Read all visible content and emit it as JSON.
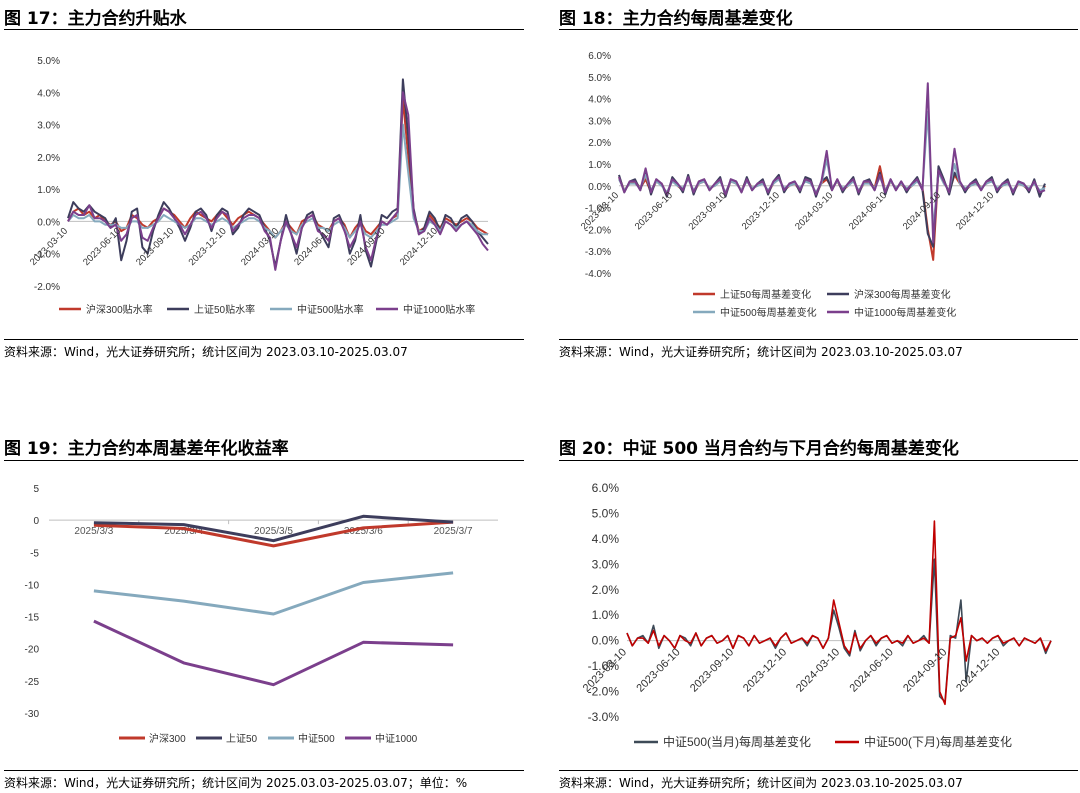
{
  "panels": [
    {
      "title": "图 17：主力合约升贴水",
      "source": "资料来源：Wind，光大证券研究所；统计区间为 2023.03.10-2025.03.07"
    },
    {
      "title": "图 18：主力合约每周基差变化",
      "source": "资料来源：Wind，光大证券研究所；统计区间为 2023.03.10-2025.03.07"
    },
    {
      "title": "图 19：主力合约本周基差年化收益率",
      "source": "资料来源：Wind，光大证券研究所；统计区间为 2025.03.03-2025.03.07；单位：%"
    },
    {
      "title": "图 20：中证 500 当月合约与下月合约每周基差变化",
      "source": "资料来源：Wind，光大证券研究所；统计区间为 2023.03.10-2025.03.07"
    }
  ],
  "chart_data": [
    {
      "type": "line",
      "title": "图 17：主力合约升贴水",
      "x_range": [
        "2023-03-10",
        "2025-03-07"
      ],
      "x_ticks": [
        "2023-03-10",
        "2023-06-10",
        "2023-09-10",
        "2023-12-10",
        "2024-03-10",
        "2024-06-10",
        "2024-09-10",
        "2024-12-10"
      ],
      "y_ticks": [
        "-2.0%",
        "-1.0%",
        "0.0%",
        "1.0%",
        "2.0%",
        "3.0%",
        "4.0%",
        "5.0%"
      ],
      "ylim": [
        -2.0,
        5.0
      ],
      "legend_position": "bottom",
      "series": [
        {
          "name": "沪深300贴水率",
          "color": "#c0392b",
          "values": [
            0.0,
            0.3,
            0.4,
            0.2,
            0.3,
            0.1,
            0.2,
            0.0,
            -0.1,
            0.0,
            -0.3,
            -0.2,
            0.2,
            0.1,
            -0.1,
            -0.2,
            0.0,
            0.1,
            0.4,
            0.3,
            0.2,
            0.0,
            -0.2,
            0.1,
            0.3,
            0.2,
            0.1,
            0.0,
            0.2,
            0.3,
            0.1,
            -0.1,
            0.1,
            0.2,
            0.3,
            0.2,
            0.1,
            -0.1,
            -0.3,
            -0.5,
            -0.3,
            0.0,
            -0.2,
            -0.4,
            0.0,
            0.1,
            0.2,
            -0.1,
            -0.2,
            -0.3,
            0.0,
            0.1,
            -0.1,
            -0.5,
            -0.2,
            0.0,
            -0.3,
            -0.4,
            -0.2,
            0.0,
            -0.1,
            0.1,
            0.2,
            3.8,
            2.0,
            0.3,
            -0.3,
            -0.2,
            0.2,
            0.0,
            -0.2,
            0.1,
            0.0,
            -0.1,
            0.0,
            0.1,
            0.0,
            -0.2,
            -0.3,
            -0.4
          ]
        },
        {
          "name": "上证50贴水率",
          "color": "#3d3d5c",
          "values": [
            0.1,
            0.6,
            0.4,
            0.3,
            0.5,
            0.3,
            0.2,
            0.1,
            -0.2,
            0.1,
            -1.2,
            -0.6,
            0.3,
            0.4,
            -0.8,
            -1.0,
            -0.3,
            0.2,
            0.6,
            0.4,
            0.1,
            -0.2,
            -0.6,
            -0.2,
            0.3,
            0.4,
            0.2,
            -0.3,
            0.2,
            0.4,
            0.3,
            -0.4,
            -0.2,
            0.2,
            0.4,
            0.3,
            0.2,
            -0.2,
            -0.6,
            -1.4,
            -0.6,
            0.2,
            -0.4,
            -1.0,
            -0.2,
            0.2,
            0.3,
            -0.2,
            -0.5,
            -0.8,
            0.1,
            0.2,
            -0.2,
            -1.0,
            -0.6,
            0.2,
            -0.9,
            -1.4,
            -0.6,
            0.2,
            0.1,
            0.3,
            0.4,
            4.4,
            2.6,
            0.4,
            -0.4,
            -0.2,
            0.3,
            0.1,
            -0.3,
            0.2,
            0.1,
            -0.2,
            0.1,
            0.2,
            0.0,
            -0.3,
            -0.5,
            -0.7
          ]
        },
        {
          "name": "中证500贴水率",
          "color": "#85a9bd",
          "values": [
            0.0,
            0.2,
            0.1,
            0.1,
            0.2,
            0.0,
            0.0,
            -0.1,
            -0.1,
            -0.1,
            -0.2,
            -0.2,
            0.0,
            0.0,
            -0.2,
            -0.2,
            -0.1,
            0.0,
            0.2,
            0.1,
            0.0,
            -0.1,
            -0.2,
            -0.1,
            0.1,
            0.1,
            0.0,
            -0.1,
            0.0,
            0.1,
            0.0,
            -0.2,
            -0.1,
            0.0,
            0.1,
            0.1,
            0.0,
            -0.2,
            -0.3,
            -0.5,
            -0.3,
            -0.1,
            -0.3,
            -0.4,
            -0.1,
            0.0,
            0.1,
            -0.2,
            -0.2,
            -0.3,
            -0.1,
            0.0,
            -0.2,
            -0.5,
            -0.3,
            -0.1,
            -0.4,
            -0.5,
            -0.3,
            -0.1,
            -0.1,
            0.0,
            0.1,
            3.0,
            1.5,
            0.1,
            -0.3,
            -0.3,
            0.0,
            -0.1,
            -0.3,
            0.0,
            -0.1,
            -0.2,
            -0.1,
            0.0,
            -0.1,
            -0.3,
            -0.4,
            -0.4
          ]
        },
        {
          "name": "中证1000贴水率",
          "color": "#7b3f8c",
          "values": [
            0.0,
            0.3,
            0.2,
            0.2,
            0.5,
            0.1,
            0.1,
            0.0,
            -0.2,
            -0.1,
            -0.6,
            -0.4,
            0.1,
            0.2,
            -0.5,
            -0.6,
            -0.2,
            0.1,
            0.4,
            0.3,
            0.1,
            -0.1,
            -0.4,
            -0.1,
            0.2,
            0.3,
            0.1,
            -0.2,
            0.1,
            0.3,
            0.2,
            -0.3,
            -0.1,
            0.1,
            0.2,
            0.2,
            0.1,
            -0.3,
            -0.5,
            -1.5,
            -0.6,
            0.0,
            -0.4,
            -0.8,
            -0.2,
            0.1,
            0.2,
            -0.3,
            -0.4,
            -0.6,
            0.0,
            0.1,
            -0.3,
            -0.8,
            -0.5,
            0.0,
            -0.8,
            -1.2,
            -0.5,
            0.0,
            -0.1,
            0.1,
            0.3,
            4.0,
            3.3,
            0.3,
            -0.4,
            -0.3,
            0.1,
            -0.1,
            -0.4,
            0.0,
            -0.1,
            -0.3,
            -0.1,
            0.0,
            -0.2,
            -0.4,
            -0.7,
            -0.9
          ]
        }
      ]
    },
    {
      "type": "line",
      "title": "图 18：主力合约每周基差变化",
      "x_range": [
        "2023-03-10",
        "2025-03-07"
      ],
      "x_ticks": [
        "2023-03-10",
        "2023-06-10",
        "2023-09-10",
        "2023-12-10",
        "2024-03-10",
        "2024-06-10",
        "2024-09-10",
        "2024-12-10"
      ],
      "y_ticks": [
        "-4.0%",
        "-3.0%",
        "-2.0%",
        "-1.0%",
        "0.0%",
        "1.0%",
        "2.0%",
        "3.0%",
        "4.0%",
        "5.0%",
        "6.0%"
      ],
      "ylim": [
        -4.0,
        6.0
      ],
      "legend_position": "bottom",
      "series": [
        {
          "name": "上证50每周基差变化",
          "color": "#c0392b",
          "values": [
            0.4,
            -0.2,
            0.1,
            0.2,
            -0.1,
            0.3,
            -0.3,
            0.2,
            0.1,
            -0.4,
            0.3,
            0.0,
            -0.2,
            0.4,
            -0.3,
            0.1,
            0.2,
            -0.1,
            0.0,
            0.3,
            -0.4,
            0.2,
            0.1,
            -0.2,
            0.3,
            -0.1,
            0.0,
            0.2,
            -0.3,
            0.1,
            0.4,
            -0.2,
            0.0,
            0.1,
            -0.2,
            0.3,
            0.2,
            -0.4,
            0.1,
            0.3,
            -0.1,
            0.2,
            -0.2,
            0.0,
            0.3,
            -0.3,
            0.1,
            0.2,
            -0.1,
            0.9,
            -0.3,
            0.2,
            -0.1,
            0.1,
            -0.2,
            0.0,
            0.3,
            -0.1,
            -2.0,
            -3.4,
            0.8,
            0.2,
            -0.3,
            0.5,
            0.1,
            -0.2,
            0.0,
            0.2,
            -0.1,
            0.1,
            0.3,
            -0.2,
            0.0,
            0.2,
            -0.3,
            0.1,
            0.0,
            -0.2,
            0.2,
            -0.4,
            0.0
          ]
        },
        {
          "name": "沪深300每周基差变化",
          "color": "#3d3d5c",
          "values": [
            0.5,
            -0.3,
            0.2,
            0.3,
            -0.2,
            0.6,
            -0.4,
            0.3,
            0.1,
            -0.5,
            0.4,
            0.1,
            -0.3,
            0.5,
            -0.4,
            0.2,
            0.3,
            -0.2,
            0.1,
            0.4,
            -0.5,
            0.3,
            0.2,
            -0.3,
            0.4,
            -0.2,
            0.1,
            0.3,
            -0.4,
            0.2,
            0.5,
            -0.3,
            0.1,
            0.2,
            -0.3,
            0.4,
            0.3,
            -0.5,
            0.2,
            0.4,
            -0.2,
            0.3,
            -0.3,
            0.1,
            0.4,
            -0.4,
            0.2,
            0.3,
            -0.2,
            0.6,
            -0.4,
            0.3,
            -0.2,
            0.2,
            -0.3,
            0.1,
            0.4,
            -0.2,
            -2.2,
            -2.8,
            0.9,
            0.3,
            -0.4,
            0.6,
            0.2,
            -0.3,
            0.1,
            0.3,
            -0.2,
            0.2,
            0.4,
            -0.3,
            0.1,
            0.3,
            -0.4,
            0.2,
            0.1,
            -0.3,
            0.3,
            -0.5,
            0.1
          ]
        },
        {
          "name": "中证500每周基差变化",
          "color": "#85a9bd",
          "values": [
            0.3,
            -0.2,
            0.1,
            0.1,
            -0.1,
            0.5,
            -0.2,
            0.2,
            0.0,
            -0.3,
            0.2,
            0.0,
            -0.1,
            0.3,
            -0.2,
            0.1,
            0.2,
            -0.1,
            0.0,
            0.2,
            -0.3,
            0.2,
            0.1,
            -0.2,
            0.2,
            -0.1,
            0.0,
            0.1,
            -0.2,
            0.1,
            0.3,
            -0.1,
            0.0,
            0.1,
            -0.1,
            0.2,
            0.1,
            -0.3,
            0.1,
            1.2,
            -0.1,
            0.2,
            -0.1,
            0.0,
            0.2,
            -0.2,
            0.1,
            0.1,
            -0.1,
            0.4,
            -0.2,
            0.2,
            -0.1,
            0.1,
            -0.1,
            0.0,
            0.2,
            -0.1,
            3.4,
            -2.0,
            0.6,
            0.1,
            -0.2,
            1.0,
            0.1,
            -0.1,
            0.0,
            0.1,
            -0.1,
            0.1,
            0.2,
            -0.1,
            0.0,
            0.1,
            -0.2,
            0.1,
            0.0,
            -0.1,
            0.1,
            -0.2,
            -0.1
          ]
        },
        {
          "name": "中证1000每周基差变化",
          "color": "#7b3f8c",
          "values": [
            0.4,
            -0.3,
            0.2,
            0.2,
            -0.2,
            0.8,
            -0.3,
            0.3,
            0.1,
            -0.4,
            0.3,
            0.1,
            -0.2,
            0.4,
            -0.3,
            0.2,
            0.3,
            -0.2,
            0.1,
            0.3,
            -0.4,
            0.3,
            0.2,
            -0.3,
            0.3,
            -0.2,
            0.1,
            0.2,
            -0.3,
            0.2,
            0.4,
            -0.2,
            0.1,
            0.2,
            -0.2,
            0.3,
            0.2,
            -0.4,
            0.2,
            1.6,
            -0.2,
            0.3,
            -0.2,
            0.1,
            0.3,
            -0.3,
            0.2,
            0.2,
            -0.2,
            0.5,
            -0.3,
            0.3,
            -0.2,
            0.2,
            -0.2,
            0.1,
            0.3,
            -0.2,
            4.7,
            -2.6,
            0.7,
            0.2,
            -0.3,
            1.7,
            0.2,
            -0.2,
            0.1,
            0.2,
            -0.2,
            0.2,
            0.3,
            -0.2,
            0.1,
            0.2,
            -0.3,
            0.2,
            0.1,
            -0.2,
            0.2,
            -0.3,
            -0.2
          ]
        }
      ]
    },
    {
      "type": "line",
      "title": "图 19：主力合约本周基差年化收益率",
      "categories": [
        "2025/3/3",
        "2025/3/4",
        "2025/3/5",
        "2025/3/6",
        "2025/3/7"
      ],
      "y_ticks": [
        "-30",
        "-25",
        "-20",
        "-15",
        "-10",
        "-5",
        "0",
        "5"
      ],
      "ylim": [
        -30,
        5
      ],
      "legend_position": "bottom",
      "series": [
        {
          "name": "沪深300",
          "color": "#c0392b",
          "values": [
            -0.8,
            -1.3,
            -4.0,
            -1.2,
            -0.3
          ]
        },
        {
          "name": "上证50",
          "color": "#3d3d5c",
          "values": [
            -0.4,
            -0.7,
            -3.2,
            0.6,
            -0.3
          ]
        },
        {
          "name": "中证500",
          "color": "#85a9bd",
          "values": [
            -11.0,
            -12.6,
            -14.6,
            -9.7,
            -8.2
          ]
        },
        {
          "name": "中证1000",
          "color": "#7b3f8c",
          "values": [
            -15.7,
            -22.2,
            -25.6,
            -19.0,
            -19.4
          ]
        }
      ]
    },
    {
      "type": "line",
      "title": "图 20：中证 500 当月合约与下月合约每周基差变化",
      "x_range": [
        "2023-03-10",
        "2025-03-07"
      ],
      "x_ticks": [
        "2023-03-10",
        "2023-06-10",
        "2023-09-10",
        "2023-12-10",
        "2024-03-10",
        "2024-06-10",
        "2024-09-10",
        "2024-12-10"
      ],
      "y_ticks": [
        "-3.0%",
        "-2.0%",
        "-1.0%",
        "0.0%",
        "1.0%",
        "2.0%",
        "3.0%",
        "4.0%",
        "5.0%",
        "6.0%"
      ],
      "ylim": [
        -3.0,
        6.0
      ],
      "legend_position": "bottom",
      "series": [
        {
          "name": "中证500(当月)每周基差变化",
          "color": "#3d4a57",
          "values": [
            0.3,
            -0.2,
            0.1,
            0.2,
            -0.1,
            0.6,
            -0.3,
            0.2,
            0.0,
            -0.3,
            0.2,
            0.1,
            -0.2,
            0.3,
            -0.2,
            0.1,
            0.2,
            -0.1,
            0.0,
            0.2,
            -0.3,
            0.2,
            0.1,
            -0.2,
            0.2,
            -0.1,
            0.0,
            0.1,
            -0.3,
            0.1,
            0.3,
            -0.1,
            0.0,
            0.1,
            -0.2,
            0.2,
            0.1,
            -0.3,
            0.1,
            1.2,
            0.5,
            -0.3,
            -0.6,
            0.4,
            -0.4,
            0.0,
            0.2,
            -0.2,
            0.1,
            0.2,
            -0.1,
            0.0,
            -0.2,
            0.2,
            -0.1,
            0.0,
            0.2,
            -0.1,
            3.2,
            -2.2,
            -2.4,
            0.2,
            0.1,
            1.6,
            -1.6,
            0.2,
            0.0,
            0.1,
            -0.1,
            0.1,
            0.2,
            -0.2,
            0.0,
            0.1,
            -0.2,
            0.1,
            0.0,
            -0.1,
            0.1,
            -0.5,
            0.0
          ]
        },
        {
          "name": "中证500(下月)每周基差变化",
          "color": "#c00000",
          "values": [
            0.3,
            -0.2,
            0.1,
            0.1,
            -0.1,
            0.4,
            -0.2,
            0.2,
            0.0,
            -0.3,
            0.2,
            0.0,
            -0.1,
            0.3,
            -0.2,
            0.1,
            0.2,
            -0.1,
            0.0,
            0.2,
            -0.3,
            0.2,
            0.1,
            -0.2,
            0.2,
            -0.1,
            0.0,
            0.1,
            -0.2,
            0.1,
            0.3,
            -0.1,
            0.0,
            0.1,
            -0.1,
            0.2,
            0.1,
            -0.3,
            0.1,
            1.6,
            0.7,
            -0.2,
            -0.5,
            0.3,
            -0.3,
            0.0,
            0.2,
            -0.1,
            0.1,
            0.2,
            -0.1,
            0.0,
            -0.1,
            0.2,
            -0.1,
            0.0,
            0.1,
            -0.1,
            4.7,
            -2.0,
            -2.5,
            0.1,
            0.2,
            0.9,
            -0.8,
            0.2,
            0.0,
            0.1,
            -0.1,
            0.1,
            0.2,
            -0.1,
            0.0,
            0.1,
            -0.2,
            0.1,
            0.0,
            -0.1,
            0.1,
            -0.4,
            0.0
          ]
        }
      ]
    }
  ]
}
